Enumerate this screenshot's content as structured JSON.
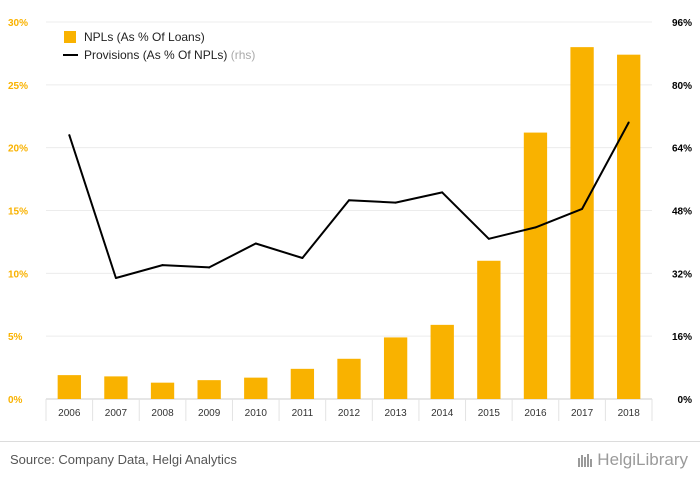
{
  "chart_data": {
    "type": "bar",
    "categories": [
      "2006",
      "2007",
      "2008",
      "2009",
      "2010",
      "2011",
      "2012",
      "2013",
      "2014",
      "2015",
      "2016",
      "2017",
      "2018"
    ],
    "series": [
      {
        "name": "NPLs (As % Of Loans)",
        "type": "bar",
        "axis": "left",
        "color": "#f9b200",
        "values": [
          1.9,
          1.8,
          1.3,
          1.5,
          1.7,
          2.4,
          3.2,
          4.9,
          5.9,
          11.0,
          21.2,
          28.0,
          27.4
        ]
      },
      {
        "name": "Provisions (As % Of NPLs)",
        "legend_suffix": "(rhs)",
        "type": "line",
        "axis": "right",
        "color": "#000000",
        "values": [
          67.2,
          30.8,
          34.1,
          33.5,
          39.6,
          35.9,
          50.6,
          50.0,
          52.6,
          40.8,
          43.7,
          48.4,
          70.4
        ]
      }
    ],
    "y_left": {
      "min": 0,
      "max": 30,
      "ticks": [
        0,
        5,
        10,
        15,
        20,
        25,
        30
      ],
      "tick_labels": [
        "0%",
        "5%",
        "10%",
        "15%",
        "20%",
        "25%",
        "30%"
      ],
      "color": "#f9b200"
    },
    "y_right": {
      "min": 0,
      "max": 96,
      "ticks": [
        0,
        16,
        32,
        48,
        64,
        80,
        96
      ],
      "tick_labels": [
        "0%",
        "16%",
        "32%",
        "48%",
        "64%",
        "80%",
        "96%"
      ],
      "color": "#000000"
    },
    "grid": true,
    "legend_position": "top-left"
  },
  "footer": {
    "source": "Source: Company Data, Helgi Analytics",
    "brand": "HelgiLibrary"
  }
}
